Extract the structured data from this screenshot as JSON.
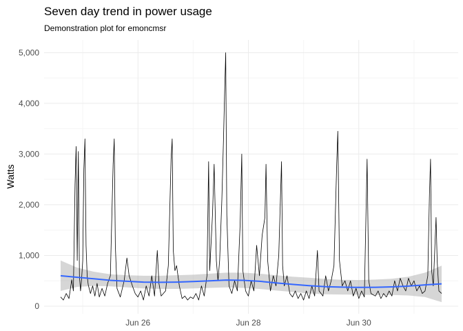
{
  "chart_data": {
    "type": "line",
    "title": "Seven day trend in power usage",
    "subtitle": "Demonstration plot for emoncmsr",
    "xlabel": "",
    "ylabel": "Watts",
    "x_tick_labels": [
      "Jun 26",
      "Jun 28",
      "Jun 30"
    ],
    "x_tick_days": [
      26,
      28,
      30
    ],
    "y_tick_labels": [
      "0",
      "1,000",
      "2,000",
      "3,000",
      "4,000",
      "5,000"
    ],
    "y_tick_values": [
      0,
      1000,
      2000,
      3000,
      4000,
      5000
    ],
    "xlim": [
      24.3,
      31.8
    ],
    "ylim": [
      -150,
      5250
    ],
    "grid": true,
    "colors": {
      "series": "#000000",
      "trend": "#3366FF",
      "band": "#999999",
      "grid_major": "#ebebeb",
      "grid_minor": "#f5f5f5"
    },
    "series": [
      {
        "kind": "line",
        "points": [
          [
            24.6,
            180
          ],
          [
            24.65,
            120
          ],
          [
            24.7,
            250
          ],
          [
            24.75,
            150
          ],
          [
            24.8,
            520
          ],
          [
            24.83,
            300
          ],
          [
            24.86,
            2400
          ],
          [
            24.88,
            3150
          ],
          [
            24.9,
            900
          ],
          [
            24.92,
            3050
          ],
          [
            24.94,
            600
          ],
          [
            24.96,
            300
          ],
          [
            24.98,
            550
          ],
          [
            25.0,
            900
          ],
          [
            25.02,
            2700
          ],
          [
            25.04,
            3300
          ],
          [
            25.06,
            1200
          ],
          [
            25.08,
            600
          ],
          [
            25.1,
            420
          ],
          [
            25.14,
            250
          ],
          [
            25.18,
            400
          ],
          [
            25.22,
            200
          ],
          [
            25.26,
            450
          ],
          [
            25.3,
            180
          ],
          [
            25.35,
            350
          ],
          [
            25.4,
            200
          ],
          [
            25.45,
            450
          ],
          [
            25.5,
            600
          ],
          [
            25.55,
            2800
          ],
          [
            25.57,
            3300
          ],
          [
            25.59,
            1200
          ],
          [
            25.62,
            350
          ],
          [
            25.68,
            180
          ],
          [
            25.75,
            500
          ],
          [
            25.8,
            950
          ],
          [
            25.84,
            600
          ],
          [
            25.9,
            400
          ],
          [
            25.95,
            250
          ],
          [
            26.0,
            180
          ],
          [
            26.05,
            300
          ],
          [
            26.1,
            120
          ],
          [
            26.15,
            400
          ],
          [
            26.2,
            200
          ],
          [
            26.25,
            600
          ],
          [
            26.3,
            200
          ],
          [
            26.35,
            1100
          ],
          [
            26.38,
            450
          ],
          [
            26.42,
            200
          ],
          [
            26.5,
            300
          ],
          [
            26.55,
            800
          ],
          [
            26.6,
            2900
          ],
          [
            26.62,
            3300
          ],
          [
            26.64,
            1100
          ],
          [
            26.67,
            700
          ],
          [
            26.7,
            800
          ],
          [
            26.75,
            400
          ],
          [
            26.8,
            150
          ],
          [
            26.85,
            200
          ],
          [
            26.9,
            120
          ],
          [
            26.95,
            180
          ],
          [
            27.0,
            150
          ],
          [
            27.05,
            250
          ],
          [
            27.1,
            120
          ],
          [
            27.15,
            400
          ],
          [
            27.2,
            200
          ],
          [
            27.25,
            600
          ],
          [
            27.28,
            2850
          ],
          [
            27.3,
            700
          ],
          [
            27.35,
            1800
          ],
          [
            27.38,
            2800
          ],
          [
            27.42,
            900
          ],
          [
            27.45,
            500
          ],
          [
            27.48,
            900
          ],
          [
            27.52,
            2100
          ],
          [
            27.55,
            3300
          ],
          [
            27.57,
            4200
          ],
          [
            27.59,
            5000
          ],
          [
            27.61,
            1800
          ],
          [
            27.65,
            400
          ],
          [
            27.7,
            250
          ],
          [
            27.75,
            500
          ],
          [
            27.8,
            300
          ],
          [
            27.85,
            1600
          ],
          [
            27.88,
            3000
          ],
          [
            27.9,
            700
          ],
          [
            27.95,
            300
          ],
          [
            28.0,
            200
          ],
          [
            28.05,
            500
          ],
          [
            28.1,
            300
          ],
          [
            28.15,
            1200
          ],
          [
            28.2,
            600
          ],
          [
            28.25,
            1400
          ],
          [
            28.3,
            1750
          ],
          [
            28.32,
            2800
          ],
          [
            28.35,
            900
          ],
          [
            28.4,
            300
          ],
          [
            28.45,
            600
          ],
          [
            28.5,
            400
          ],
          [
            28.55,
            1000
          ],
          [
            28.6,
            2850
          ],
          [
            28.62,
            800
          ],
          [
            28.65,
            400
          ],
          [
            28.7,
            600
          ],
          [
            28.75,
            250
          ],
          [
            28.8,
            180
          ],
          [
            28.85,
            300
          ],
          [
            28.9,
            150
          ],
          [
            28.95,
            250
          ],
          [
            29.0,
            120
          ],
          [
            29.05,
            300
          ],
          [
            29.1,
            150
          ],
          [
            29.15,
            400
          ],
          [
            29.2,
            200
          ],
          [
            29.25,
            1100
          ],
          [
            29.28,
            300
          ],
          [
            29.35,
            200
          ],
          [
            29.4,
            600
          ],
          [
            29.45,
            300
          ],
          [
            29.5,
            500
          ],
          [
            29.55,
            800
          ],
          [
            29.6,
            2800
          ],
          [
            29.62,
            3450
          ],
          [
            29.65,
            900
          ],
          [
            29.7,
            400
          ],
          [
            29.75,
            500
          ],
          [
            29.8,
            300
          ],
          [
            29.85,
            500
          ],
          [
            29.9,
            200
          ],
          [
            29.95,
            350
          ],
          [
            30.0,
            150
          ],
          [
            30.05,
            300
          ],
          [
            30.1,
            180
          ],
          [
            30.15,
            2900
          ],
          [
            30.18,
            500
          ],
          [
            30.22,
            250
          ],
          [
            30.3,
            200
          ],
          [
            30.35,
            300
          ],
          [
            30.4,
            150
          ],
          [
            30.45,
            250
          ],
          [
            30.5,
            180
          ],
          [
            30.55,
            300
          ],
          [
            30.6,
            200
          ],
          [
            30.65,
            500
          ],
          [
            30.7,
            300
          ],
          [
            30.75,
            550
          ],
          [
            30.8,
            400
          ],
          [
            30.85,
            300
          ],
          [
            30.9,
            550
          ],
          [
            30.95,
            400
          ],
          [
            31.0,
            500
          ],
          [
            31.05,
            300
          ],
          [
            31.1,
            400
          ],
          [
            31.15,
            250
          ],
          [
            31.2,
            300
          ],
          [
            31.25,
            600
          ],
          [
            31.28,
            2200
          ],
          [
            31.3,
            2900
          ],
          [
            31.32,
            700
          ],
          [
            31.35,
            400
          ],
          [
            31.4,
            1750
          ],
          [
            31.42,
            900
          ],
          [
            31.45,
            300
          ],
          [
            31.5,
            250
          ]
        ]
      },
      {
        "kind": "trend",
        "points": [
          [
            24.6,
            600
          ],
          [
            24.9,
            570
          ],
          [
            25.2,
            540
          ],
          [
            25.5,
            510
          ],
          [
            25.8,
            490
          ],
          [
            26.1,
            475
          ],
          [
            26.4,
            470
          ],
          [
            26.7,
            475
          ],
          [
            27.0,
            485
          ],
          [
            27.3,
            500
          ],
          [
            27.6,
            515
          ],
          [
            27.9,
            510
          ],
          [
            28.2,
            490
          ],
          [
            28.5,
            460
          ],
          [
            28.8,
            430
          ],
          [
            29.1,
            405
          ],
          [
            29.4,
            385
          ],
          [
            29.7,
            375
          ],
          [
            30.0,
            370
          ],
          [
            30.3,
            372
          ],
          [
            30.6,
            380
          ],
          [
            30.9,
            395
          ],
          [
            31.2,
            420
          ],
          [
            31.5,
            440
          ]
        ],
        "lower": [
          [
            24.6,
            300
          ],
          [
            24.9,
            380
          ],
          [
            25.2,
            400
          ],
          [
            25.5,
            390
          ],
          [
            25.8,
            370
          ],
          [
            26.1,
            350
          ],
          [
            26.4,
            340
          ],
          [
            26.7,
            340
          ],
          [
            27.0,
            350
          ],
          [
            27.3,
            360
          ],
          [
            27.6,
            370
          ],
          [
            27.9,
            360
          ],
          [
            28.2,
            340
          ],
          [
            28.5,
            310
          ],
          [
            28.8,
            280
          ],
          [
            29.1,
            250
          ],
          [
            29.4,
            235
          ],
          [
            29.7,
            230
          ],
          [
            30.0,
            225
          ],
          [
            30.3,
            220
          ],
          [
            30.6,
            220
          ],
          [
            30.9,
            210
          ],
          [
            31.2,
            180
          ],
          [
            31.5,
            80
          ]
        ],
        "upper": [
          [
            24.6,
            900
          ],
          [
            24.9,
            760
          ],
          [
            25.2,
            680
          ],
          [
            25.5,
            630
          ],
          [
            25.8,
            610
          ],
          [
            26.1,
            600
          ],
          [
            26.4,
            600
          ],
          [
            26.7,
            610
          ],
          [
            27.0,
            620
          ],
          [
            27.3,
            640
          ],
          [
            27.6,
            660
          ],
          [
            27.9,
            660
          ],
          [
            28.2,
            640
          ],
          [
            28.5,
            610
          ],
          [
            28.8,
            580
          ],
          [
            29.1,
            560
          ],
          [
            29.4,
            535
          ],
          [
            29.7,
            520
          ],
          [
            30.0,
            515
          ],
          [
            30.3,
            524
          ],
          [
            30.6,
            540
          ],
          [
            30.9,
            580
          ],
          [
            31.2,
            660
          ],
          [
            31.5,
            800
          ]
        ]
      }
    ]
  }
}
